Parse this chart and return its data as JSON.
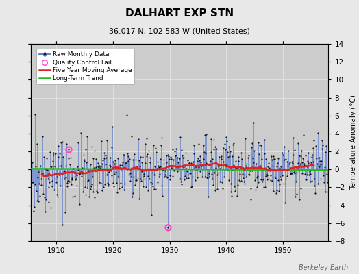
{
  "title": "DALHART EXP STN",
  "subtitle": "36.017 N, 102.583 W (United States)",
  "ylabel": "Temperature Anomaly (°C)",
  "watermark": "Berkeley Earth",
  "year_start": 1905,
  "year_end": 1957,
  "ylim": [
    -8,
    14
  ],
  "yticks": [
    -8,
    -6,
    -4,
    -2,
    0,
    2,
    4,
    6,
    8,
    10,
    12,
    14
  ],
  "xticks": [
    1910,
    1920,
    1930,
    1940,
    1950
  ],
  "fig_bg_color": "#e8e8e8",
  "plot_bg_color": "#cccccc",
  "grid_color": "#e0e0e0",
  "raw_line_color": "#5577cc",
  "raw_dot_color": "#111111",
  "ma_color": "#dd2222",
  "trend_color": "#22bb22",
  "qc_color": "#ff44cc",
  "seed": 42
}
